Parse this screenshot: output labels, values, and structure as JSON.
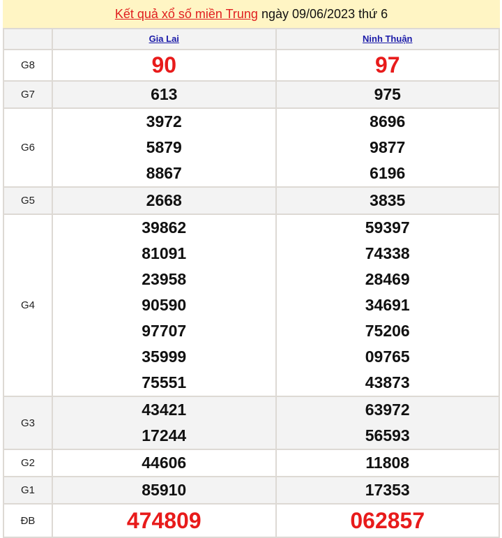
{
  "title": {
    "link": "Kết quả xổ số miền Trung",
    "rest": " ngày 09/06/2023 thứ 6"
  },
  "provinces": [
    "Gia Lai",
    "Ninh Thuận"
  ],
  "colors": {
    "accent": "#e81b1b",
    "link": "#1a1aa8",
    "title_bg": "#fff5c4"
  },
  "prizes": [
    {
      "label": "G8",
      "values": [
        [
          "90"
        ],
        [
          "97"
        ]
      ]
    },
    {
      "label": "G7",
      "values": [
        [
          "613"
        ],
        [
          "975"
        ]
      ]
    },
    {
      "label": "G6",
      "values": [
        [
          "3972",
          "5879",
          "8867"
        ],
        [
          "8696",
          "9877",
          "6196"
        ]
      ]
    },
    {
      "label": "G5",
      "values": [
        [
          "2668"
        ],
        [
          "3835"
        ]
      ]
    },
    {
      "label": "G4",
      "values": [
        [
          "39862",
          "81091",
          "23958",
          "90590",
          "97707",
          "35999",
          "75551"
        ],
        [
          "59397",
          "74338",
          "28469",
          "34691",
          "75206",
          "09765",
          "43873"
        ]
      ]
    },
    {
      "label": "G3",
      "values": [
        [
          "43421",
          "17244"
        ],
        [
          "63972",
          "56593"
        ]
      ]
    },
    {
      "label": "G2",
      "values": [
        [
          "44606"
        ],
        [
          "11808"
        ]
      ]
    },
    {
      "label": "G1",
      "values": [
        [
          "85910"
        ],
        [
          "17353"
        ]
      ]
    },
    {
      "label": "ĐB",
      "values": [
        [
          "474809"
        ],
        [
          "062857"
        ]
      ]
    }
  ]
}
